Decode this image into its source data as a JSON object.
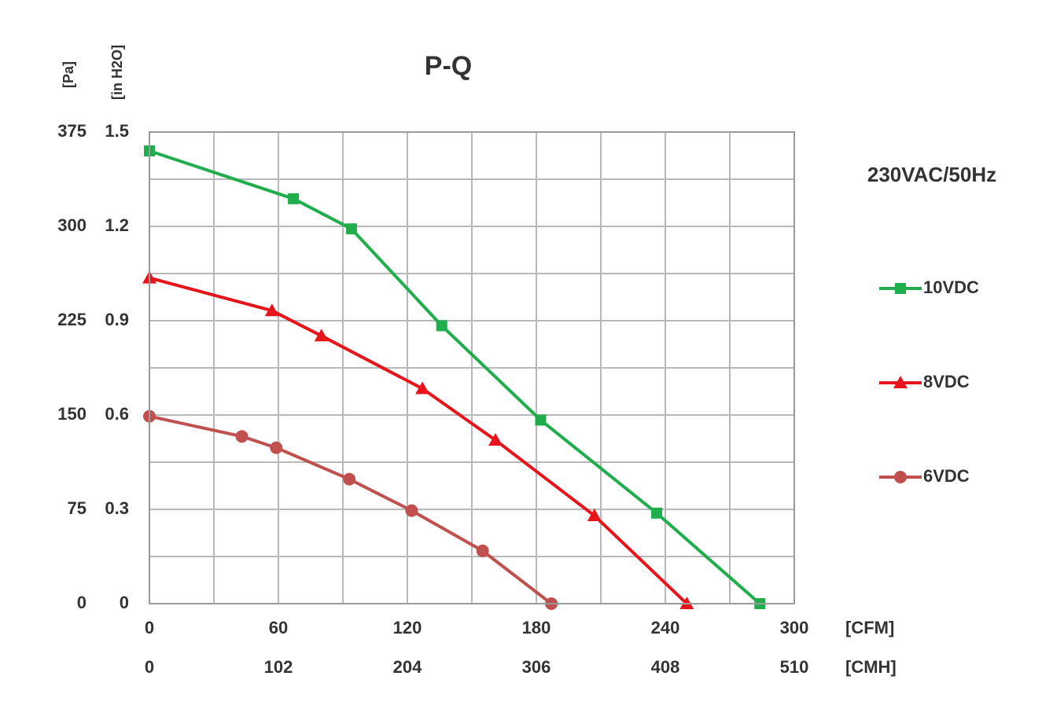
{
  "chart_data": {
    "type": "line",
    "title": "P-Q",
    "annotation": "230VAC/50Hz",
    "y_label": "[Pa]",
    "y2_label": "[in H2O]",
    "x_label": "[CFM]",
    "x2_label": "[CMH]",
    "xlim": [
      0,
      300
    ],
    "xticks": [
      0,
      60,
      120,
      180,
      240,
      300
    ],
    "x2lim": [
      0,
      510
    ],
    "x2ticks": [
      0,
      102,
      204,
      306,
      408,
      510
    ],
    "ylim": [
      0,
      375
    ],
    "yticks": [
      0,
      75,
      150,
      225,
      300,
      375
    ],
    "y2lim": [
      0,
      1.5
    ],
    "y2ticks": [
      0,
      0.3,
      0.6,
      0.9,
      1.2,
      1.5
    ],
    "grid": true,
    "series": [
      {
        "name": "10VDC",
        "color": "#1fae4b",
        "marker": "square",
        "x": [
          0,
          67,
          94,
          136,
          182,
          236,
          284
        ],
        "values": [
          360,
          322,
          298,
          221,
          146,
          72,
          0
        ]
      },
      {
        "name": "8VDC",
        "color": "#e8141b",
        "marker": "triangle",
        "x": [
          0,
          57,
          80,
          127,
          161,
          207,
          250
        ],
        "values": [
          259,
          233,
          213,
          171,
          130,
          70,
          0
        ]
      },
      {
        "name": "6VDC",
        "color": "#c0504d",
        "marker": "circle",
        "x": [
          0,
          43,
          59,
          93,
          122,
          155,
          187
        ],
        "values": [
          149,
          133,
          124,
          99,
          74,
          42,
          0
        ]
      }
    ]
  }
}
